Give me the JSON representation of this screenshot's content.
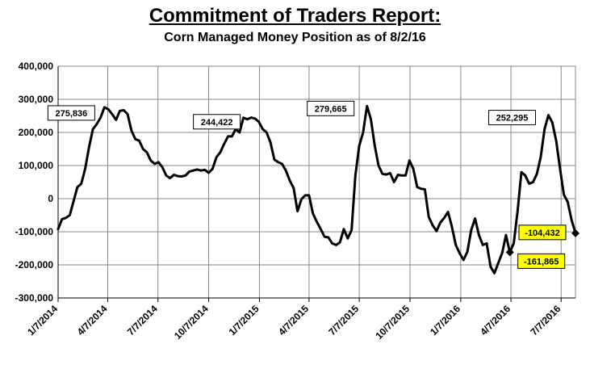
{
  "chart_data": {
    "type": "line",
    "title": "Commitment of Traders Report:",
    "subtitle": "Corn Managed Money Position as of 8/2/16",
    "xlabel": "",
    "ylabel": "",
    "ylim": [
      -300000,
      400000
    ],
    "yticks": [
      400000,
      300000,
      200000,
      100000,
      0,
      -100000,
      -200000,
      -300000
    ],
    "ytick_labels": [
      "400,000",
      "300,000",
      "200,000",
      "100,000",
      "0",
      "-100,000",
      "-200,000",
      "-300,000"
    ],
    "xlim": [
      "2014-01-07",
      "2016-08-02"
    ],
    "xticks": [
      "2014-01-07",
      "2014-04-07",
      "2014-07-07",
      "2014-10-07",
      "2015-01-07",
      "2015-04-07",
      "2015-07-07",
      "2015-10-07",
      "2016-01-07",
      "2016-04-07",
      "2016-07-07"
    ],
    "xtick_labels": [
      "1/7/2014",
      "4/7/2014",
      "7/7/2014",
      "10/7/2014",
      "1/7/2015",
      "4/7/2015",
      "7/7/2015",
      "10/7/2015",
      "1/7/2016",
      "4/7/2016",
      "7/7/2016"
    ],
    "grid": true,
    "series": [
      {
        "color": "#000000",
        "x": [
          "2014-01-07",
          "2014-01-14",
          "2014-01-21",
          "2014-01-28",
          "2014-02-04",
          "2014-02-11",
          "2014-02-18",
          "2014-02-25",
          "2014-03-04",
          "2014-03-11",
          "2014-03-18",
          "2014-03-25",
          "2014-04-01",
          "2014-04-08",
          "2014-04-15",
          "2014-04-22",
          "2014-04-29",
          "2014-05-06",
          "2014-05-13",
          "2014-05-20",
          "2014-05-27",
          "2014-06-03",
          "2014-06-10",
          "2014-06-17",
          "2014-06-24",
          "2014-07-01",
          "2014-07-08",
          "2014-07-15",
          "2014-07-22",
          "2014-07-29",
          "2014-08-05",
          "2014-08-12",
          "2014-08-19",
          "2014-08-26",
          "2014-09-02",
          "2014-09-09",
          "2014-09-16",
          "2014-09-23",
          "2014-09-30",
          "2014-10-07",
          "2014-10-14",
          "2014-10-21",
          "2014-10-28",
          "2014-11-04",
          "2014-11-11",
          "2014-11-18",
          "2014-11-25",
          "2014-12-02",
          "2014-12-09",
          "2014-12-16",
          "2014-12-23",
          "2014-12-30",
          "2015-01-06",
          "2015-01-13",
          "2015-01-20",
          "2015-01-27",
          "2015-02-03",
          "2015-02-10",
          "2015-02-17",
          "2015-02-24",
          "2015-03-03",
          "2015-03-10",
          "2015-03-17",
          "2015-03-24",
          "2015-03-31",
          "2015-04-07",
          "2015-04-14",
          "2015-04-21",
          "2015-04-28",
          "2015-05-05",
          "2015-05-12",
          "2015-05-19",
          "2015-05-26",
          "2015-06-02",
          "2015-06-09",
          "2015-06-16",
          "2015-06-23",
          "2015-06-30",
          "2015-07-07",
          "2015-07-14",
          "2015-07-21",
          "2015-07-28",
          "2015-08-04",
          "2015-08-11",
          "2015-08-18",
          "2015-08-25",
          "2015-09-01",
          "2015-09-08",
          "2015-09-15",
          "2015-09-22",
          "2015-09-29",
          "2015-10-06",
          "2015-10-13",
          "2015-10-20",
          "2015-10-27",
          "2015-11-03",
          "2015-11-10",
          "2015-11-17",
          "2015-11-24",
          "2015-12-01",
          "2015-12-08",
          "2015-12-15",
          "2015-12-22",
          "2015-12-29",
          "2016-01-05",
          "2016-01-12",
          "2016-01-19",
          "2016-01-26",
          "2016-02-02",
          "2016-02-09",
          "2016-02-16",
          "2016-02-23",
          "2016-03-01",
          "2016-03-08",
          "2016-03-15",
          "2016-03-22",
          "2016-03-29",
          "2016-04-05",
          "2016-04-12",
          "2016-04-19",
          "2016-04-26",
          "2016-05-03",
          "2016-05-10",
          "2016-05-17",
          "2016-05-24",
          "2016-05-31",
          "2016-06-07",
          "2016-06-14",
          "2016-06-21",
          "2016-06-28",
          "2016-07-05",
          "2016-07-12",
          "2016-07-19",
          "2016-07-26",
          "2016-08-02"
        ],
        "y": [
          -92000,
          -62000,
          -58000,
          -50000,
          -8000,
          35000,
          45000,
          90000,
          155000,
          210000,
          225000,
          245000,
          275836,
          270000,
          255000,
          238000,
          265000,
          267000,
          255000,
          205000,
          180000,
          175000,
          150000,
          140000,
          115000,
          105000,
          110000,
          95000,
          70000,
          62000,
          72000,
          68000,
          67000,
          70000,
          82000,
          85000,
          88000,
          85000,
          87000,
          78000,
          90000,
          125000,
          140000,
          165000,
          188000,
          188000,
          210000,
          200000,
          244422,
          240000,
          245000,
          242000,
          232000,
          210000,
          200000,
          170000,
          118000,
          110000,
          105000,
          85000,
          55000,
          32000,
          -38000,
          -2000,
          10000,
          10000,
          -45000,
          -70000,
          -92000,
          -115000,
          -117000,
          -135000,
          -140000,
          -132000,
          -92000,
          -120000,
          -95000,
          70000,
          160000,
          200000,
          279665,
          240000,
          160000,
          100000,
          75000,
          73000,
          77000,
          50000,
          72000,
          70000,
          70000,
          115000,
          90000,
          35000,
          30000,
          28000,
          -55000,
          -80000,
          -98000,
          -72000,
          -58000,
          -40000,
          -85000,
          -140000,
          -165000,
          -185000,
          -160000,
          -95000,
          -60000,
          -110000,
          -140000,
          -135000,
          -205000,
          -225000,
          -195000,
          -165000,
          -110000,
          -161865,
          -135000,
          -40000,
          80000,
          70000,
          45000,
          50000,
          75000,
          125000,
          210000,
          252295,
          230000,
          175000,
          90000,
          12000,
          -10000,
          -65000,
          -104432
        ]
      }
    ],
    "annotations": [
      {
        "text": "275,836",
        "x": "2014-04-01",
        "y": 275836,
        "highlight": false
      },
      {
        "text": "244,422",
        "x": "2014-12-09",
        "y": 244422,
        "highlight": false
      },
      {
        "text": "279,665",
        "x": "2015-07-21",
        "y": 279665,
        "highlight": false
      },
      {
        "text": "252,295",
        "x": "2016-06-14",
        "y": 252295,
        "highlight": false
      },
      {
        "text": "-104,432",
        "x": "2016-08-02",
        "y": -104432,
        "highlight": true
      },
      {
        "text": "-161,865",
        "x": "2016-04-05",
        "y": -161865,
        "highlight": true
      }
    ],
    "highlight_color": "#ffff00"
  }
}
